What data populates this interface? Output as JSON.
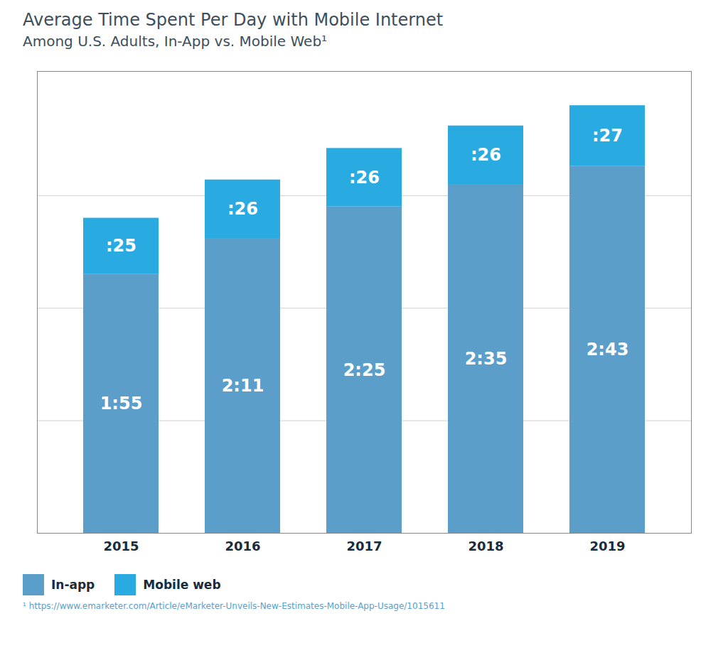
{
  "chart_data": {
    "type": "bar",
    "title": "Average Time Spent Per Day with Mobile Internet",
    "subtitle": "Among U.S. Adults, In-App vs. Mobile Web¹",
    "caption": "¹ https://www.emarketer.com/Article/eMarketer-Unveils-New-Estimates-Mobile-App-Usage/1015611",
    "categories": [
      "2015",
      "2016",
      "2017",
      "2018",
      "2019"
    ],
    "series": [
      {
        "name": "In-app",
        "color": "#5b9ec9",
        "values": [
          115,
          131,
          145,
          155,
          163
        ],
        "value_labels": [
          "1:55",
          "2:11",
          "2:25",
          "2:35",
          "2:43"
        ]
      },
      {
        "name": "Mobile web",
        "color": "#29abe2",
        "values": [
          25,
          26,
          26,
          26,
          27
        ],
        "value_labels": [
          ":25",
          ":26",
          ":26",
          ":26",
          ":27"
        ]
      }
    ],
    "stacked": true,
    "data_labels": true,
    "ylim": [
      0,
      205.2
    ],
    "yticks": [
      50,
      100,
      150
    ],
    "grid": true,
    "tick_labels": "x",
    "legend": "lower left"
  }
}
